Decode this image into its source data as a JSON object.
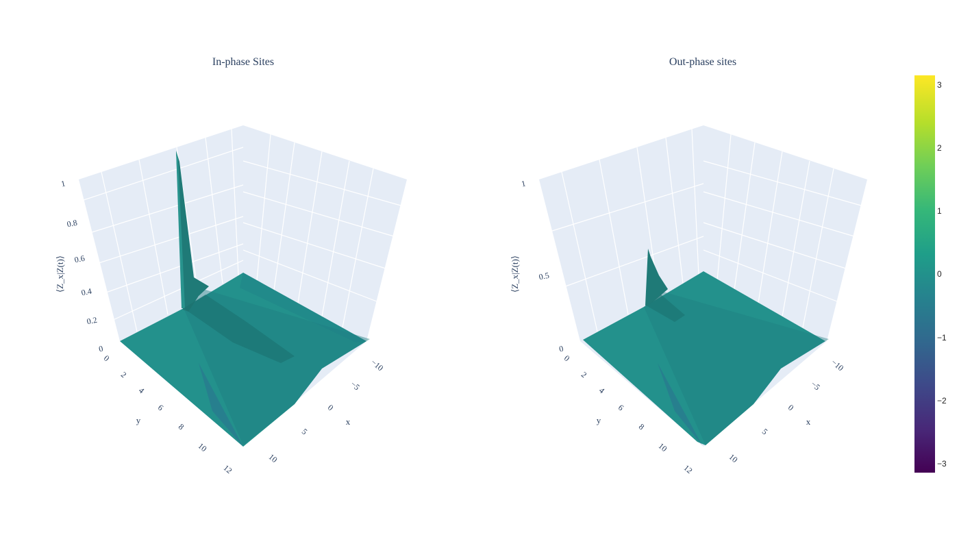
{
  "chart_data": [
    {
      "type": "surface3d",
      "title": "In-phase Sites",
      "xlabel": "x",
      "ylabel": "y",
      "zlabel": "⟨Z_x|Z(t)⟩",
      "xlim": [
        -12,
        12
      ],
      "ylim": [
        0,
        12
      ],
      "zlim": [
        0,
        1
      ],
      "x_ticks": [
        "−10",
        "−5",
        "0",
        "5",
        "10"
      ],
      "y_ticks": [
        "0",
        "2",
        "4",
        "6",
        "8",
        "10",
        "12"
      ],
      "z_ticks": [
        "0",
        "0.2",
        "0.4",
        "0.6",
        "0.8",
        "1"
      ],
      "surface_color": "#23918c",
      "peak": {
        "x": -12,
        "y": 0,
        "z": 1.0
      }
    },
    {
      "type": "surface3d",
      "title": "Out-phase sites",
      "xlabel": "x",
      "ylabel": "y",
      "zlabel": "⟨Z_x|Z(t)⟩",
      "xlim": [
        -12,
        12
      ],
      "ylim": [
        0,
        12
      ],
      "zlim": [
        0,
        1
      ],
      "x_ticks": [
        "−10",
        "−5",
        "0",
        "5",
        "10"
      ],
      "y_ticks": [
        "0",
        "2",
        "4",
        "6",
        "8",
        "10",
        "12"
      ],
      "z_ticks": [
        "0",
        "0.5",
        "1"
      ],
      "surface_color": "#23918c",
      "peak": {
        "x": -12,
        "y": 0,
        "z": 0.5
      }
    }
  ],
  "colorbar": {
    "colorscale": "viridis",
    "range": [
      -3.14,
      3.14
    ],
    "ticks": [
      "3",
      "2",
      "1",
      "0",
      "−1",
      "−2",
      "−3"
    ],
    "colors": [
      "#440154",
      "#482878",
      "#3e4989",
      "#31688e",
      "#26828e",
      "#1f9e89",
      "#35b779",
      "#6ece58",
      "#b5de2b",
      "#fde725"
    ]
  }
}
